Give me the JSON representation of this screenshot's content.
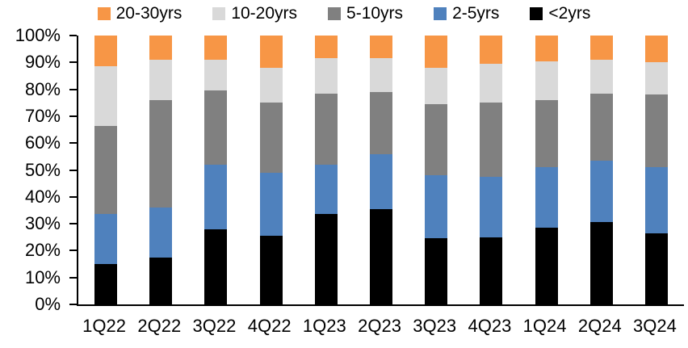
{
  "chart_data": {
    "type": "bar",
    "variant": "100-percent-stacked-column",
    "title": "",
    "categories": [
      "1Q22",
      "2Q22",
      "3Q22",
      "4Q22",
      "1Q23",
      "2Q23",
      "3Q23",
      "4Q23",
      "1Q24",
      "2Q24",
      "3Q24"
    ],
    "series": [
      {
        "name": "<2yrs",
        "color": "#000000",
        "values": [
          15,
          17.5,
          28,
          25.5,
          33.5,
          35.5,
          24.5,
          25,
          28.5,
          30.5,
          26.5
        ]
      },
      {
        "name": "2-5yrs",
        "color": "#4F81BD",
        "values": [
          18.5,
          18.5,
          24,
          23.5,
          18.5,
          20.5,
          23.5,
          22.5,
          22.5,
          23,
          24.5
        ]
      },
      {
        "name": "5-10yrs",
        "color": "#808080",
        "values": [
          33,
          40,
          27.5,
          26,
          26.5,
          23,
          26.5,
          27.5,
          25,
          25,
          27
        ]
      },
      {
        "name": "10-20yrs",
        "color": "#D9D9D9",
        "values": [
          22,
          15,
          11.5,
          13,
          13,
          12.5,
          13.5,
          14.5,
          14.5,
          12.5,
          12
        ]
      },
      {
        "name": "20-30yrs",
        "color": "#F79646",
        "values": [
          11.5,
          9,
          9,
          12,
          8.5,
          8.5,
          12,
          10.5,
          9.5,
          9,
          10
        ]
      }
    ],
    "legend": {
      "position": "top",
      "order": [
        "20-30yrs",
        "10-20yrs",
        "5-10yrs",
        "2-5yrs",
        "<2yrs"
      ]
    },
    "y_axis": {
      "min": 0,
      "max": 100,
      "step": 10,
      "tick_labels": [
        "0%",
        "10%",
        "20%",
        "30%",
        "40%",
        "50%",
        "60%",
        "70%",
        "80%",
        "90%",
        "100%"
      ]
    },
    "grid": false
  }
}
